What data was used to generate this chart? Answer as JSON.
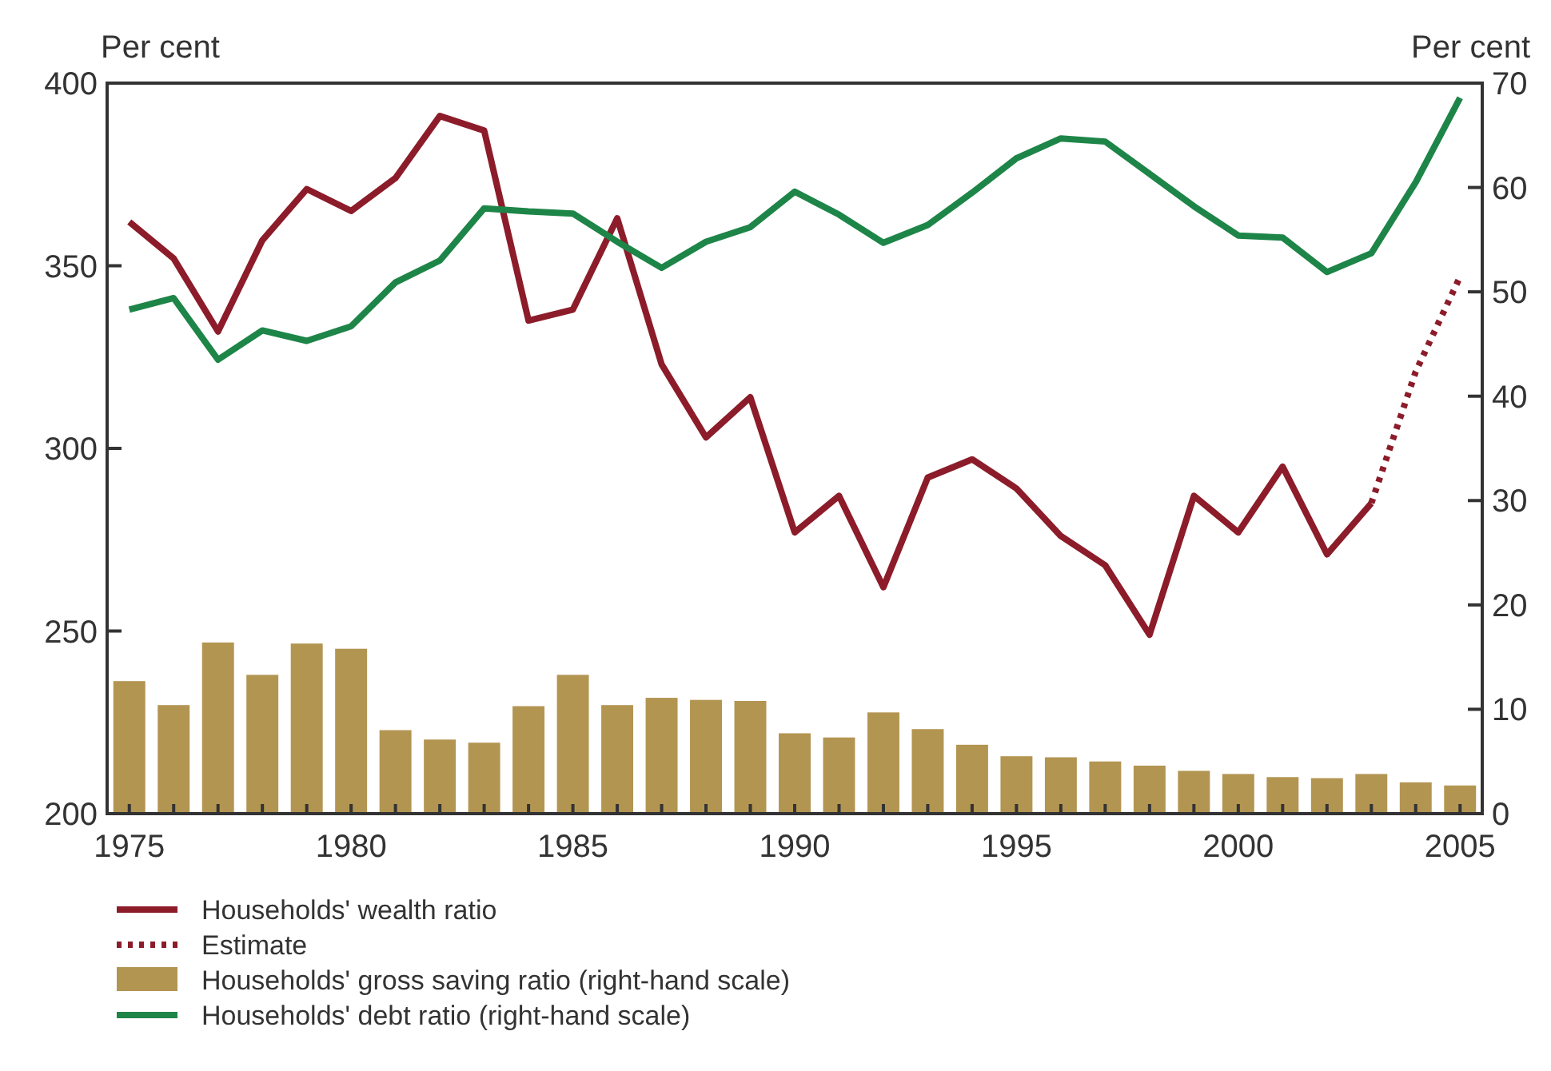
{
  "chart_data": {
    "type": "line",
    "ylabel": "Per cent",
    "y2label": "Per cent",
    "x": [
      1975,
      1976,
      1977,
      1978,
      1979,
      1980,
      1981,
      1982,
      1983,
      1984,
      1985,
      1986,
      1987,
      1988,
      1989,
      1990,
      1991,
      1992,
      1993,
      1994,
      1995,
      1996,
      1997,
      1998,
      1999,
      2000,
      2001,
      2002,
      2003,
      2004,
      2005
    ],
    "xlim": [
      1974.5,
      2005.5
    ],
    "xticks": [
      1975,
      {
        "value": 1976,
        "label": null
      },
      {
        "value": 1977,
        "label": null
      },
      {
        "value": 1978,
        "label": null
      },
      {
        "value": 1979,
        "label": null
      },
      1980,
      {
        "value": 1981,
        "label": null
      },
      {
        "value": 1982,
        "label": null
      },
      {
        "value": 1983,
        "label": null
      },
      {
        "value": 1984,
        "label": null
      },
      1985,
      {
        "value": 1986,
        "label": null
      },
      {
        "value": 1987,
        "label": null
      },
      {
        "value": 1988,
        "label": null
      },
      {
        "value": 1989,
        "label": null
      },
      1990,
      {
        "value": 1991,
        "label": null
      },
      {
        "value": 1992,
        "label": null
      },
      {
        "value": 1993,
        "label": null
      },
      {
        "value": 1994,
        "label": null
      },
      1995,
      {
        "value": 1996,
        "label": null
      },
      {
        "value": 1997,
        "label": null
      },
      {
        "value": 1998,
        "label": null
      },
      {
        "value": 1999,
        "label": null
      },
      2000,
      {
        "value": 2001,
        "label": null
      },
      {
        "value": 2002,
        "label": null
      },
      {
        "value": 2003,
        "label": null
      },
      {
        "value": 2004,
        "label": null
      },
      2005
    ],
    "ylim": [
      200,
      400
    ],
    "yticks": [
      200,
      250,
      300,
      350,
      400
    ],
    "y2lim": [
      0,
      70
    ],
    "y2ticks": [
      0,
      10,
      20,
      30,
      40,
      50,
      60,
      70
    ],
    "grid": false,
    "legend": "bottom",
    "series": [
      {
        "name": "Households' wealth ratio",
        "axis": "y",
        "color": "#8c1c2a",
        "line_style": "solid",
        "x": [
          1975,
          1976,
          1977,
          1978,
          1979,
          1980,
          1981,
          1982,
          1983,
          1984,
          1985,
          1986,
          1987,
          1988,
          1989,
          1990,
          1991,
          1992,
          1993,
          1994,
          1995,
          1996,
          1997,
          1998,
          1999,
          2000,
          2001,
          2002,
          2003
        ],
        "values": [
          362,
          352,
          332,
          357,
          371,
          365,
          374,
          391,
          387,
          335,
          338,
          363,
          323,
          303,
          314,
          277,
          287,
          262,
          292,
          297,
          289,
          276,
          268,
          249,
          287,
          277,
          295,
          271,
          285
        ]
      },
      {
        "name": "Estimate",
        "axis": "y",
        "color": "#8c1c2a",
        "line_style": "dotted",
        "x": [
          2003,
          2004,
          2005
        ],
        "values": [
          285,
          321,
          347
        ]
      },
      {
        "name": "Households' gross saving ratio (right-hand scale)",
        "type": "bar",
        "axis": "y2",
        "color": "#b39552",
        "values": [
          12.7,
          10.4,
          16.4,
          13.3,
          16.3,
          15.8,
          8.0,
          7.1,
          6.8,
          10.3,
          13.3,
          10.4,
          11.1,
          10.9,
          10.8,
          7.7,
          7.3,
          9.7,
          8.1,
          6.6,
          5.5,
          5.4,
          5.0,
          4.6,
          4.1,
          3.8,
          3.5,
          3.4,
          3.8,
          3.0,
          2.7
        ]
      },
      {
        "name": "Households' debt ratio (right-hand scale)",
        "axis": "y2",
        "color": "#1e8548",
        "line_style": "solid",
        "values": [
          48.3,
          49.4,
          43.5,
          46.3,
          45.3,
          46.7,
          50.9,
          53.0,
          58.0,
          57.7,
          57.5,
          54.8,
          52.3,
          54.8,
          56.2,
          59.6,
          57.4,
          54.7,
          56.4,
          59.5,
          62.8,
          64.7,
          64.4,
          61.3,
          58.2,
          55.4,
          55.2,
          51.9,
          53.7,
          60.5,
          68.6
        ]
      }
    ]
  }
}
